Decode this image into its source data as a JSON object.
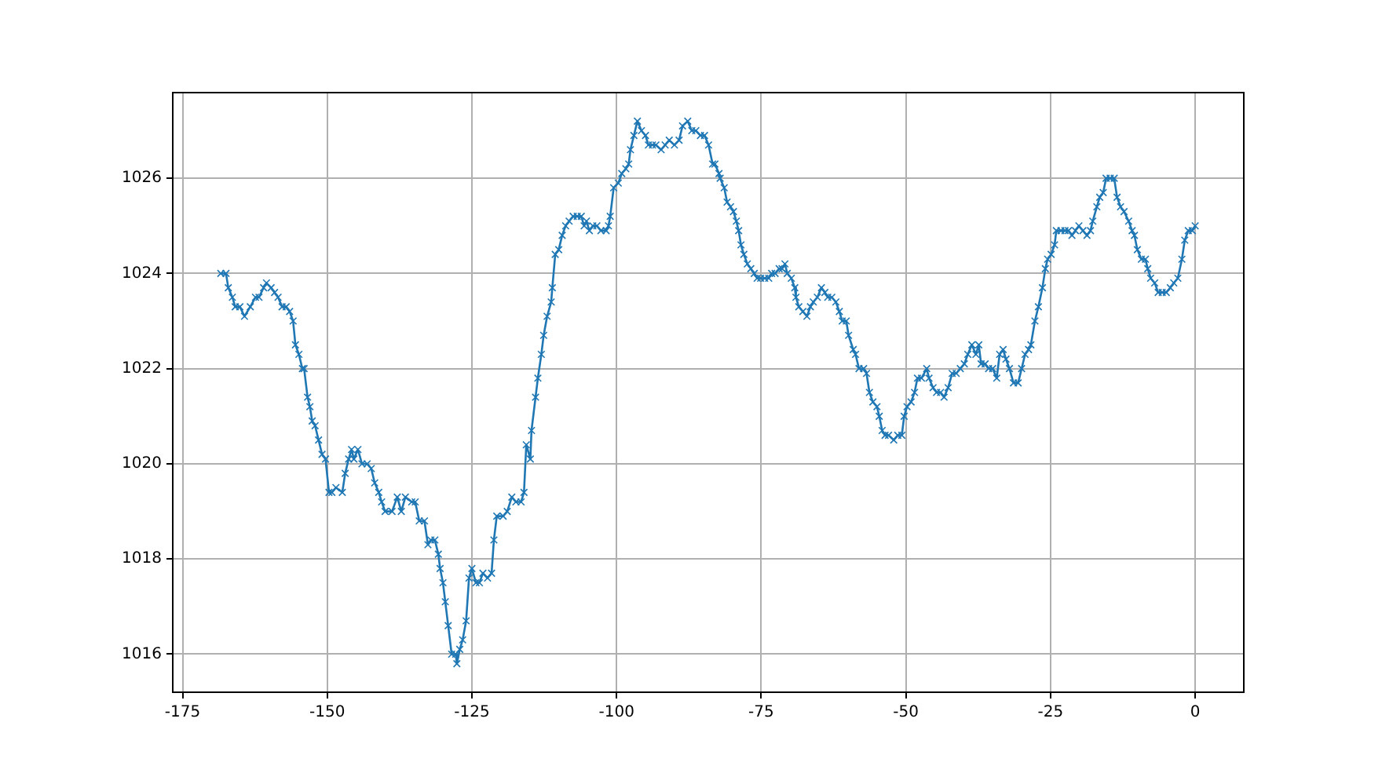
{
  "chart_data": {
    "type": "line",
    "color": "#1f77b4",
    "marker": "cross",
    "grid": true,
    "x": [
      -168.4,
      -167.5,
      -167.1,
      -166.4,
      -165.9,
      -165.1,
      -164.3,
      -163.3,
      -162.4,
      -161.8,
      -161.0,
      -160.5,
      -159.7,
      -159.1,
      -158.5,
      -157.8,
      -157.1,
      -156.5,
      -155.9,
      -155.5,
      -154.9,
      -154.3,
      -154.0,
      -153.4,
      -153.0,
      -152.6,
      -152.1,
      -151.5,
      -150.9,
      -150.3,
      -149.7,
      -149.2,
      -148.5,
      -147.4,
      -146.9,
      -146.3,
      -145.8,
      -145.4,
      -144.7,
      -144.0,
      -143.1,
      -142.4,
      -141.8,
      -141.1,
      -140.6,
      -140.0,
      -138.8,
      -137.9,
      -137.2,
      -136.5,
      -135.4,
      -134.8,
      -134.1,
      -133.2,
      -132.6,
      -132.1,
      -131.4,
      -130.8,
      -130.5,
      -130.0,
      -129.6,
      -129.1,
      -128.5,
      -127.8,
      -127.6,
      -127.1,
      -126.6,
      -126.0,
      -125.5,
      -125.0,
      -124.3,
      -123.7,
      -123.1,
      -122.3,
      -121.6,
      -121.2,
      -120.7,
      -119.6,
      -118.9,
      -118.1,
      -117.4,
      -116.5,
      -116.0,
      -115.6,
      -114.9,
      -114.7,
      -114.0,
      -113.6,
      -113.0,
      -112.6,
      -112.0,
      -111.3,
      -111.1,
      -110.6,
      -110.0,
      -109.4,
      -108.8,
      -108.2,
      -107.5,
      -106.8,
      -106.1,
      -105.6,
      -105.2,
      -104.7,
      -104.1,
      -103.4,
      -102.7,
      -101.8,
      -101.4,
      -101.1,
      -100.5,
      -99.7,
      -99.1,
      -98.4,
      -97.9,
      -97.6,
      -97.0,
      -96.4,
      -95.7,
      -95.0,
      -94.5,
      -93.8,
      -93.2,
      -92.3,
      -91.6,
      -90.9,
      -90.0,
      -89.2,
      -88.6,
      -87.7,
      -87.0,
      -86.3,
      -85.5,
      -84.8,
      -84.1,
      -83.4,
      -83.0,
      -82.3,
      -82.1,
      -81.4,
      -80.9,
      -80.3,
      -79.8,
      -79.3,
      -78.9,
      -78.5,
      -78.0,
      -77.4,
      -76.8,
      -76.2,
      -75.7,
      -75.1,
      -74.4,
      -73.7,
      -73.2,
      -72.6,
      -71.9,
      -71.4,
      -70.9,
      -70.5,
      -69.8,
      -69.2,
      -69.0,
      -68.5,
      -67.8,
      -67.1,
      -66.5,
      -66.0,
      -65.3,
      -64.6,
      -64.0,
      -63.5,
      -62.8,
      -62.1,
      -61.5,
      -61.0,
      -60.3,
      -59.9,
      -59.1,
      -58.7,
      -58.1,
      -57.3,
      -56.8,
      -56.3,
      -55.7,
      -55.0,
      -54.6,
      -54.1,
      -53.6,
      -53.0,
      -52.1,
      -51.4,
      -50.7,
      -50.3,
      -49.8,
      -49.1,
      -48.5,
      -48.0,
      -47.3,
      -46.4,
      -46.0,
      -45.3,
      -44.7,
      -44.0,
      -43.4,
      -42.7,
      -42.0,
      -41.3,
      -40.6,
      -39.9,
      -39.3,
      -38.6,
      -37.9,
      -37.4,
      -37.0,
      -36.3,
      -35.7,
      -35.0,
      -34.3,
      -33.8,
      -33.2,
      -32.7,
      -32.1,
      -31.4,
      -30.6,
      -30.0,
      -29.4,
      -28.8,
      -28.4,
      -27.7,
      -27.1,
      -26.4,
      -25.9,
      -25.5,
      -24.9,
      -24.3,
      -24.0,
      -23.2,
      -22.5,
      -21.9,
      -21.3,
      -20.7,
      -20.1,
      -19.4,
      -18.7,
      -18.1,
      -17.7,
      -17.0,
      -16.5,
      -15.9,
      -15.4,
      -14.7,
      -14.0,
      -13.5,
      -12.9,
      -12.3,
      -11.5,
      -10.9,
      -10.5,
      -10.0,
      -9.3,
      -8.6,
      -8.2,
      -7.7,
      -7.0,
      -6.4,
      -5.7,
      -5.0,
      -4.3,
      -3.7,
      -3.0,
      -2.3,
      -1.8,
      -1.2,
      -0.5,
      0
    ],
    "values": [
      1024.0,
      1024.0,
      1023.7,
      1023.5,
      1023.3,
      1023.3,
      1023.1,
      1023.3,
      1023.5,
      1023.5,
      1023.7,
      1023.8,
      1023.7,
      1023.6,
      1023.5,
      1023.3,
      1023.3,
      1023.2,
      1023.0,
      1022.5,
      1022.3,
      1022.0,
      1022.0,
      1021.4,
      1021.2,
      1020.9,
      1020.8,
      1020.5,
      1020.2,
      1020.1,
      1019.4,
      1019.4,
      1019.5,
      1019.4,
      1019.8,
      1020.1,
      1020.3,
      1020.1,
      1020.3,
      1020.0,
      1020.0,
      1019.9,
      1019.6,
      1019.4,
      1019.2,
      1019.0,
      1019.0,
      1019.3,
      1019.0,
      1019.3,
      1019.2,
      1019.2,
      1018.8,
      1018.8,
      1018.3,
      1018.4,
      1018.4,
      1018.1,
      1017.8,
      1017.5,
      1017.1,
      1016.6,
      1016.0,
      1016.0,
      1015.8,
      1016.1,
      1016.3,
      1016.7,
      1017.6,
      1017.8,
      1017.5,
      1017.5,
      1017.7,
      1017.6,
      1017.7,
      1018.4,
      1018.9,
      1018.9,
      1019.0,
      1019.3,
      1019.2,
      1019.2,
      1019.4,
      1020.4,
      1020.1,
      1020.7,
      1021.4,
      1021.8,
      1022.3,
      1022.7,
      1023.1,
      1023.4,
      1023.7,
      1024.4,
      1024.5,
      1024.8,
      1025.0,
      1025.1,
      1025.2,
      1025.2,
      1025.2,
      1025.0,
      1025.1,
      1024.9,
      1025.0,
      1025.0,
      1024.9,
      1024.9,
      1025.0,
      1025.2,
      1025.8,
      1025.9,
      1026.1,
      1026.2,
      1026.3,
      1026.6,
      1026.9,
      1027.2,
      1027.0,
      1026.9,
      1026.7,
      1026.7,
      1026.7,
      1026.6,
      1026.7,
      1026.8,
      1026.7,
      1026.8,
      1027.1,
      1027.2,
      1027.0,
      1027.0,
      1026.9,
      1026.9,
      1026.7,
      1026.3,
      1026.3,
      1026.1,
      1026.0,
      1025.8,
      1025.5,
      1025.4,
      1025.3,
      1025.1,
      1024.9,
      1024.6,
      1024.4,
      1024.2,
      1024.1,
      1024.0,
      1023.9,
      1023.9,
      1023.9,
      1023.9,
      1024.0,
      1024.0,
      1024.1,
      1024.1,
      1024.2,
      1024.0,
      1023.9,
      1023.7,
      1023.5,
      1023.3,
      1023.2,
      1023.1,
      1023.3,
      1023.4,
      1023.5,
      1023.7,
      1023.6,
      1023.5,
      1023.5,
      1023.4,
      1023.2,
      1023.0,
      1023.0,
      1022.7,
      1022.4,
      1022.3,
      1022.0,
      1022.0,
      1021.9,
      1021.5,
      1021.3,
      1021.2,
      1021.0,
      1020.7,
      1020.6,
      1020.6,
      1020.5,
      1020.6,
      1020.6,
      1021.0,
      1021.2,
      1021.3,
      1021.5,
      1021.8,
      1021.8,
      1022.0,
      1021.8,
      1021.6,
      1021.5,
      1021.5,
      1021.4,
      1021.6,
      1021.9,
      1021.9,
      1022.0,
      1022.1,
      1022.3,
      1022.5,
      1022.3,
      1022.5,
      1022.1,
      1022.1,
      1022.0,
      1022.0,
      1021.8,
      1022.3,
      1022.4,
      1022.2,
      1022.0,
      1021.7,
      1021.7,
      1022.0,
      1022.3,
      1022.4,
      1022.5,
      1023.0,
      1023.3,
      1023.7,
      1024.1,
      1024.3,
      1024.4,
      1024.6,
      1024.9,
      1024.9,
      1024.9,
      1024.9,
      1024.8,
      1024.9,
      1025.0,
      1024.9,
      1024.8,
      1024.9,
      1025.1,
      1025.4,
      1025.6,
      1025.7,
      1026.0,
      1026.0,
      1026.0,
      1025.6,
      1025.4,
      1025.3,
      1025.1,
      1024.9,
      1024.8,
      1024.5,
      1024.3,
      1024.3,
      1024.1,
      1023.9,
      1023.8,
      1023.6,
      1023.6,
      1023.6,
      1023.7,
      1023.8,
      1023.9,
      1024.3,
      1024.7,
      1024.9,
      1024.9,
      1025.0
    ],
    "xlim": [
      -176.7,
      8.4
    ],
    "ylim": [
      1015.2,
      1027.8
    ],
    "xticks": [
      -175,
      -150,
      -125,
      -100,
      -75,
      -50,
      -25,
      0
    ],
    "yticks": [
      1016,
      1018,
      1020,
      1022,
      1024,
      1026
    ]
  }
}
